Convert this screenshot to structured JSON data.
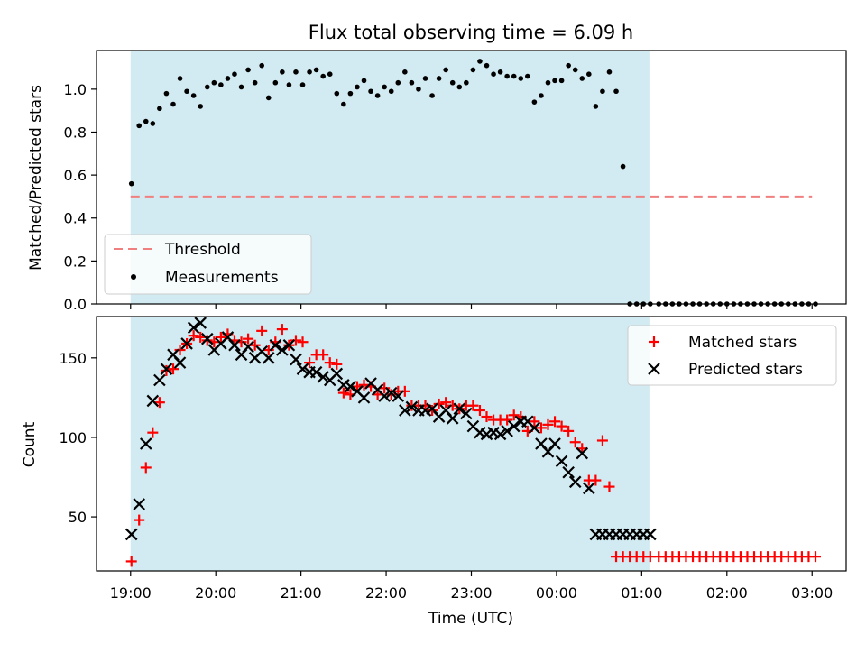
{
  "figure": {
    "title": "Flux total observing time = 6.09 h",
    "xlabel": "Time (UTC)",
    "x_tick_labels": [
      "19:00",
      "20:00",
      "21:00",
      "22:00",
      "23:00",
      "00:00",
      "01:00",
      "02:00",
      "03:00"
    ],
    "shade_color": "#add8e6"
  },
  "chart_data": [
    {
      "type": "scatter",
      "title": "Flux total observing time = 6.09 h",
      "ylabel": "Matched/Predicted stars",
      "x_unit": "hours since 19:00 UTC",
      "xlim": [
        -0.4,
        8.4
      ],
      "ylim": [
        0,
        1.18
      ],
      "yticks": [
        0.0,
        0.2,
        0.4,
        0.6,
        0.8,
        1.0
      ],
      "ytick_labels": [
        "0.0",
        "0.2",
        "0.4",
        "0.6",
        "0.8",
        "1.0"
      ],
      "observing_window_hours": [
        0,
        6.09
      ],
      "legend_placement": "lower-left",
      "legend": [
        {
          "label": "Threshold"
        },
        {
          "label": "Measurements"
        }
      ],
      "threshold": {
        "name": "Threshold",
        "y": 0.5,
        "x_range": [
          0,
          8.0
        ],
        "color": "#f08080",
        "style": "dashed"
      },
      "series": [
        {
          "name": "Measurements",
          "color": "#000000",
          "x": [
            0.01,
            0.1,
            0.18,
            0.26,
            0.34,
            0.42,
            0.5,
            0.58,
            0.66,
            0.74,
            0.82,
            0.9,
            0.98,
            1.06,
            1.14,
            1.22,
            1.3,
            1.38,
            1.46,
            1.54,
            1.62,
            1.7,
            1.78,
            1.86,
            1.94,
            2.02,
            2.1,
            2.18,
            2.26,
            2.34,
            2.42,
            2.5,
            2.58,
            2.66,
            2.74,
            2.82,
            2.9,
            2.98,
            3.06,
            3.14,
            3.22,
            3.3,
            3.38,
            3.46,
            3.54,
            3.62,
            3.7,
            3.78,
            3.86,
            3.94,
            4.02,
            4.1,
            4.18,
            4.26,
            4.34,
            4.42,
            4.5,
            4.58,
            4.66,
            4.74,
            4.82,
            4.9,
            4.98,
            5.06,
            5.14,
            5.22,
            5.3,
            5.38,
            5.46,
            5.54,
            5.62,
            5.7,
            5.78,
            5.86,
            5.94,
            6.02,
            6.1,
            6.2,
            6.28,
            6.36,
            6.44,
            6.52,
            6.6,
            6.68,
            6.76,
            6.84,
            6.92,
            7.0,
            7.08,
            7.16,
            7.24,
            7.32,
            7.4,
            7.48,
            7.56,
            7.64,
            7.72,
            7.8,
            7.88,
            7.96,
            8.04
          ],
          "y": [
            0.56,
            0.83,
            0.85,
            0.84,
            0.91,
            0.98,
            0.93,
            1.05,
            0.99,
            0.97,
            0.92,
            1.01,
            1.03,
            1.02,
            1.05,
            1.07,
            1.01,
            1.09,
            1.03,
            1.11,
            0.96,
            1.03,
            1.08,
            1.02,
            1.08,
            1.02,
            1.08,
            1.09,
            1.06,
            1.07,
            0.98,
            0.93,
            0.98,
            1.01,
            1.04,
            0.99,
            0.97,
            1.01,
            0.99,
            1.03,
            1.08,
            1.03,
            1.0,
            1.05,
            0.97,
            1.05,
            1.09,
            1.03,
            1.01,
            1.03,
            1.09,
            1.13,
            1.11,
            1.07,
            1.08,
            1.06,
            1.06,
            1.05,
            1.06,
            0.94,
            0.97,
            1.03,
            1.04,
            1.04,
            1.11,
            1.09,
            1.05,
            1.07,
            0.92,
            0.99,
            1.08,
            0.99,
            0.64,
            0.0,
            0.0,
            0.0,
            0.0,
            0.0,
            0.0,
            0.0,
            0.0,
            0.0,
            0.0,
            0.0,
            0.0,
            0.0,
            0.0,
            0.0,
            0.0,
            0.0,
            0.0,
            0.0,
            0.0,
            0.0,
            0.0,
            0.0,
            0.0,
            0.0,
            0.0,
            0.0,
            0.0
          ]
        }
      ]
    },
    {
      "type": "scatter",
      "ylabel": "Count",
      "xlabel": "Time (UTC)",
      "x_unit": "hours since 19:00 UTC",
      "xlim": [
        -0.4,
        8.4
      ],
      "ylim": [
        16,
        176
      ],
      "yticks": [
        50,
        100,
        150
      ],
      "ytick_labels": [
        "50",
        "100",
        "150"
      ],
      "observing_window_hours": [
        0,
        6.09
      ],
      "legend_placement": "top-right",
      "legend": [
        {
          "label": "Matched stars"
        },
        {
          "label": "Predicted stars"
        }
      ],
      "series": [
        {
          "name": "Matched stars",
          "color": "#ff0000",
          "marker": "+",
          "x": [
            0.01,
            0.1,
            0.18,
            0.26,
            0.34,
            0.42,
            0.5,
            0.58,
            0.66,
            0.74,
            0.82,
            0.9,
            0.98,
            1.06,
            1.14,
            1.22,
            1.3,
            1.38,
            1.46,
            1.54,
            1.62,
            1.7,
            1.78,
            1.86,
            1.94,
            2.02,
            2.1,
            2.18,
            2.26,
            2.34,
            2.42,
            2.5,
            2.58,
            2.66,
            2.74,
            2.82,
            2.9,
            2.98,
            3.06,
            3.14,
            3.22,
            3.3,
            3.38,
            3.46,
            3.54,
            3.62,
            3.7,
            3.78,
            3.86,
            3.94,
            4.02,
            4.1,
            4.18,
            4.26,
            4.34,
            4.42,
            4.5,
            4.58,
            4.66,
            4.74,
            4.82,
            4.9,
            4.98,
            5.06,
            5.14,
            5.22,
            5.3,
            5.38,
            5.46,
            5.54,
            5.62,
            5.7,
            5.78,
            5.86,
            5.94,
            6.02,
            6.1,
            6.2,
            6.28,
            6.36,
            6.44,
            6.52,
            6.6,
            6.68,
            6.76,
            6.84,
            6.92,
            7.0,
            7.08,
            7.16,
            7.24,
            7.32,
            7.4,
            7.48,
            7.56,
            7.64,
            7.72,
            7.8,
            7.88,
            7.96,
            8.04
          ],
          "y": [
            22,
            48,
            81,
            103,
            122,
            142,
            143,
            155,
            159,
            164,
            163,
            161,
            160,
            163,
            165,
            161,
            160,
            162,
            158,
            167,
            155,
            160,
            168,
            158,
            161,
            160,
            147,
            152,
            152,
            147,
            146,
            128,
            127,
            132,
            133,
            132,
            127,
            131,
            127,
            129,
            129,
            120,
            120,
            120,
            117,
            121,
            122,
            120,
            118,
            120,
            120,
            117,
            113,
            111,
            111,
            111,
            114,
            113,
            104,
            110,
            106,
            108,
            110,
            107,
            104,
            97,
            93,
            73,
            73,
            98,
            69,
            25,
            25,
            25,
            25,
            25,
            25,
            25,
            25,
            25,
            25,
            25,
            25,
            25,
            25,
            25,
            25,
            25,
            25,
            25,
            25,
            25,
            25,
            25,
            25,
            25,
            25,
            25,
            25,
            25,
            25
          ]
        },
        {
          "name": "Predicted stars",
          "color": "#000000",
          "marker": "x",
          "x": [
            0.01,
            0.1,
            0.18,
            0.26,
            0.34,
            0.42,
            0.5,
            0.58,
            0.66,
            0.74,
            0.82,
            0.9,
            0.98,
            1.06,
            1.14,
            1.22,
            1.3,
            1.38,
            1.46,
            1.54,
            1.62,
            1.7,
            1.78,
            1.86,
            1.94,
            2.02,
            2.1,
            2.18,
            2.26,
            2.34,
            2.42,
            2.5,
            2.58,
            2.66,
            2.74,
            2.82,
            2.9,
            2.98,
            3.06,
            3.14,
            3.22,
            3.3,
            3.38,
            3.46,
            3.54,
            3.62,
            3.7,
            3.78,
            3.86,
            3.94,
            4.02,
            4.1,
            4.18,
            4.26,
            4.34,
            4.42,
            4.5,
            4.58,
            4.66,
            4.74,
            4.82,
            4.9,
            4.98,
            5.06,
            5.14,
            5.22,
            5.3,
            5.38,
            5.46,
            5.54,
            5.62,
            5.7,
            5.78,
            5.86,
            5.94,
            6.02,
            6.1
          ],
          "y": [
            39,
            58,
            96,
            123,
            136,
            143,
            152,
            147,
            159,
            169,
            172,
            162,
            155,
            159,
            163,
            158,
            152,
            157,
            150,
            154,
            150,
            158,
            155,
            158,
            149,
            143,
            141,
            141,
            138,
            136,
            140,
            133,
            132,
            129,
            125,
            134,
            130,
            126,
            128,
            126,
            117,
            119,
            117,
            117,
            118,
            113,
            117,
            112,
            118,
            115,
            107,
            103,
            102,
            103,
            102,
            104,
            107,
            110,
            110,
            106,
            96,
            91,
            96,
            85,
            78,
            72,
            90,
            68,
            39,
            39,
            39,
            39,
            39,
            39,
            39,
            39,
            39
          ]
        }
      ]
    }
  ]
}
